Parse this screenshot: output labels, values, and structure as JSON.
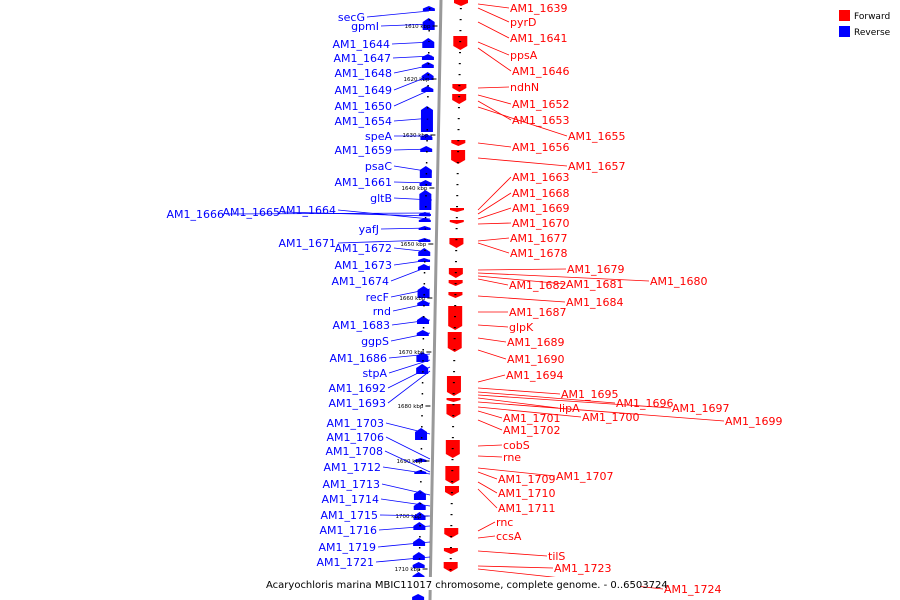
{
  "caption": "Acaryochloris marina MBIC11017 chromosome, complete genome. - 0..6503724",
  "legend": [
    {
      "name": "Forward",
      "color": "#ff0000"
    },
    {
      "name": "Reverse",
      "color": "#0000ff"
    }
  ],
  "colors": {
    "forward": "#ff0000",
    "reverse": "#0000ff",
    "axis": "#999999"
  },
  "ticks": [
    {
      "label": "1610 kbp"
    },
    {
      "label": "1620 kbp"
    },
    {
      "label": "1630 kbp"
    },
    {
      "label": "1640 kbp"
    },
    {
      "label": "1650 kbp"
    },
    {
      "label": "1660 kbp"
    },
    {
      "label": "1670 kbp"
    },
    {
      "label": "1680 kbp"
    },
    {
      "label": "1690 kbp"
    },
    {
      "label": "1700 kbp"
    },
    {
      "label": "1710 kbp"
    }
  ],
  "reverse_genes": [
    "secG",
    "gpmI",
    "AM1_1644",
    "AM1_1647",
    "AM1_1648",
    "AM1_1649",
    "AM1_1650",
    "AM1_1654",
    "speA",
    "AM1_1659",
    "psaC",
    "AM1_1661",
    "gltB",
    "AM1_1666",
    "AM1_1665",
    "AM1_1664",
    "yafJ",
    "AM1_1671",
    "AM1_1672",
    "AM1_1673",
    "AM1_1674",
    "recF",
    "rnd",
    "AM1_1683",
    "ggpS",
    "AM1_1686",
    "stpA",
    "AM1_1692",
    "AM1_1693",
    "AM1_1703",
    "AM1_1706",
    "AM1_1708",
    "AM1_1712",
    "AM1_1713",
    "AM1_1714",
    "AM1_1715",
    "AM1_1716",
    "AM1_1719",
    "AM1_1721"
  ],
  "forward_genes": [
    "AM1_1639",
    "pyrD",
    "AM1_1641",
    "ppsA",
    "AM1_1646",
    "ndhN",
    "AM1_1652",
    "AM1_1653",
    "AM1_1655",
    "AM1_1656",
    "AM1_1657",
    "AM1_1663",
    "AM1_1668",
    "AM1_1669",
    "AM1_1670",
    "AM1_1677",
    "AM1_1678",
    "AM1_1679",
    "AM1_1680",
    "AM1_1681",
    "AM1_1682",
    "AM1_1684",
    "AM1_1687",
    "glpK",
    "AM1_1689",
    "AM1_1690",
    "AM1_1694",
    "AM1_1695",
    "AM1_1696",
    "AM1_1697",
    "lipA",
    "AM1_1699",
    "AM1_1700",
    "AM1_1701",
    "AM1_1702",
    "cobS",
    "rne",
    "AM1_1707",
    "AM1_1709",
    "AM1_1710",
    "AM1_1711",
    "rnc",
    "ccsA",
    "tilS",
    "AM1_1723",
    "AM1_1724"
  ]
}
